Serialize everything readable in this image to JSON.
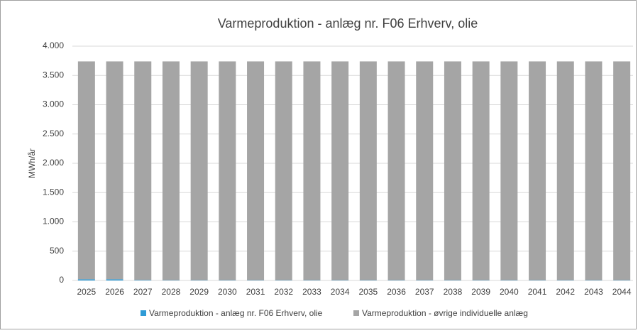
{
  "chart_data": {
    "type": "stacked_bar",
    "title": "Varmeproduktion - anlæg nr. F06 Erhverv, olie",
    "y_label": "MWh/år",
    "categories": [
      "2025",
      "2026",
      "2027",
      "2028",
      "2029",
      "2030",
      "2031",
      "2032",
      "2033",
      "2034",
      "2035",
      "2036",
      "2037",
      "2038",
      "2039",
      "2040",
      "2041",
      "2042",
      "2043",
      "2044"
    ],
    "series": [
      {
        "name": "Varmeproduktion - anlæg nr. F06 Erhverv, olie",
        "color": "#2e9bd6",
        "values": [
          20,
          20,
          8,
          5,
          5,
          5,
          5,
          5,
          5,
          5,
          5,
          5,
          5,
          5,
          5,
          5,
          5,
          5,
          5,
          5
        ]
      },
      {
        "name": "Varmeproduktion - øvrige individuelle anlæg",
        "color": "#a5a5a5",
        "values": [
          3720,
          3720,
          3732,
          3735,
          3735,
          3735,
          3735,
          3735,
          3735,
          3735,
          3735,
          3735,
          3735,
          3735,
          3735,
          3735,
          3735,
          3735,
          3735,
          3735
        ]
      }
    ],
    "ylim": [
      0,
      4000
    ],
    "yticks": [
      0,
      500,
      {
        "value": 1000,
        "label": "1.000"
      },
      {
        "value": 1500,
        "label": "1.500"
      },
      {
        "value": 2000,
        "label": "2.000"
      },
      {
        "value": 2500,
        "label": "2.500"
      },
      {
        "value": 3000,
        "label": "3.000"
      },
      {
        "value": 3500,
        "label": "3.500"
      },
      {
        "value": 4000,
        "label": "4.000"
      }
    ],
    "grid": true,
    "legend": "bottom"
  }
}
